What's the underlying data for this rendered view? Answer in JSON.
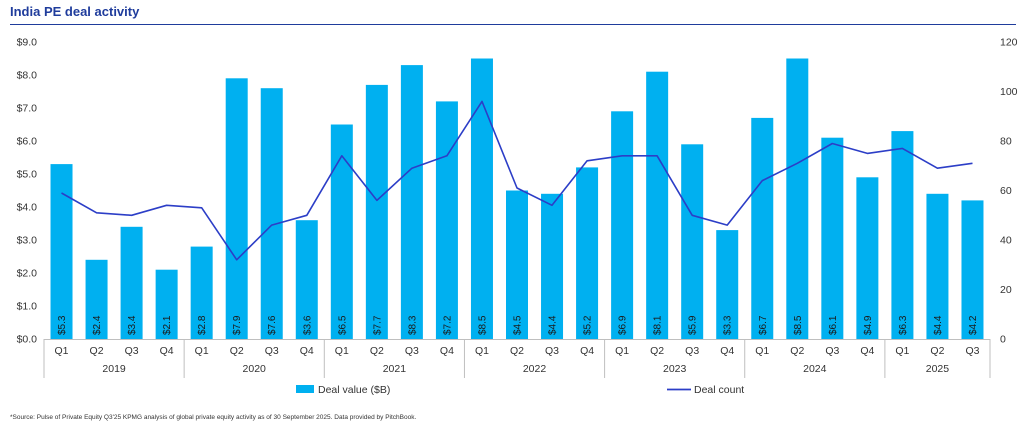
{
  "title": "India PE deal activity",
  "source": "*Source: Pulse of Private Equity Q3'25 KPMG analysis of global private equity activity as of 30 September 2025. Data provided by PitchBook.",
  "colors": {
    "bar": "#00b0f0",
    "line": "#2c3ec7",
    "title": "#1f3c9c",
    "axis": "#333333",
    "grid": "#bfbfbf"
  },
  "chart_data": {
    "type": "bar",
    "title": "India PE deal activity",
    "categories": [
      "Q1",
      "Q2",
      "Q3",
      "Q4",
      "Q1",
      "Q2",
      "Q3",
      "Q4",
      "Q1",
      "Q2",
      "Q3",
      "Q4",
      "Q1",
      "Q2",
      "Q3",
      "Q4",
      "Q1",
      "Q2",
      "Q3",
      "Q4",
      "Q1",
      "Q2",
      "Q3",
      "Q4",
      "Q1",
      "Q2",
      "Q3"
    ],
    "years": [
      {
        "label": "2019",
        "count": 4
      },
      {
        "label": "2020",
        "count": 4
      },
      {
        "label": "2021",
        "count": 4
      },
      {
        "label": "2022",
        "count": 4
      },
      {
        "label": "2023",
        "count": 4
      },
      {
        "label": "2024",
        "count": 4
      },
      {
        "label": "2025",
        "count": 3
      }
    ],
    "series": [
      {
        "name": "Deal value ($B)",
        "type": "bar",
        "axis": "left",
        "values": [
          5.3,
          2.4,
          3.4,
          2.1,
          2.8,
          7.9,
          7.6,
          3.6,
          6.5,
          7.7,
          8.3,
          7.2,
          8.5,
          4.5,
          4.4,
          5.2,
          6.9,
          8.1,
          5.9,
          3.3,
          6.7,
          8.5,
          6.1,
          4.9,
          6.3,
          4.4,
          4.2
        ],
        "labels": [
          "$5.3",
          "$2.4",
          "$3.4",
          "$2.1",
          "$2.8",
          "$7.9",
          "$7.6",
          "$3.6",
          "$6.5",
          "$7.7",
          "$8.3",
          "$7.2",
          "$8.5",
          "$4.5",
          "$4.4",
          "$5.2",
          "$6.9",
          "$8.1",
          "$5.9",
          "$3.3",
          "$6.7",
          "$8.5",
          "$6.1",
          "$4.9",
          "$6.3",
          "$4.4",
          "$4.2"
        ]
      },
      {
        "name": "Deal count",
        "type": "line",
        "axis": "right",
        "values": [
          59,
          51,
          50,
          54,
          53,
          32,
          46,
          50,
          74,
          56,
          69,
          74,
          96,
          61,
          54,
          72,
          74,
          74,
          50,
          46,
          64,
          71,
          79,
          75,
          77,
          69,
          71
        ]
      }
    ],
    "y_left": {
      "ylim": [
        0,
        9
      ],
      "ticks": [
        "$0.0",
        "$1.0",
        "$2.0",
        "$3.0",
        "$4.0",
        "$5.0",
        "$6.0",
        "$7.0",
        "$8.0",
        "$9.0"
      ]
    },
    "y_right": {
      "ylim": [
        0,
        120
      ],
      "ticks": [
        "0",
        "20",
        "40",
        "60",
        "80",
        "100",
        "120"
      ]
    },
    "grid": false,
    "legend": "bottom"
  }
}
